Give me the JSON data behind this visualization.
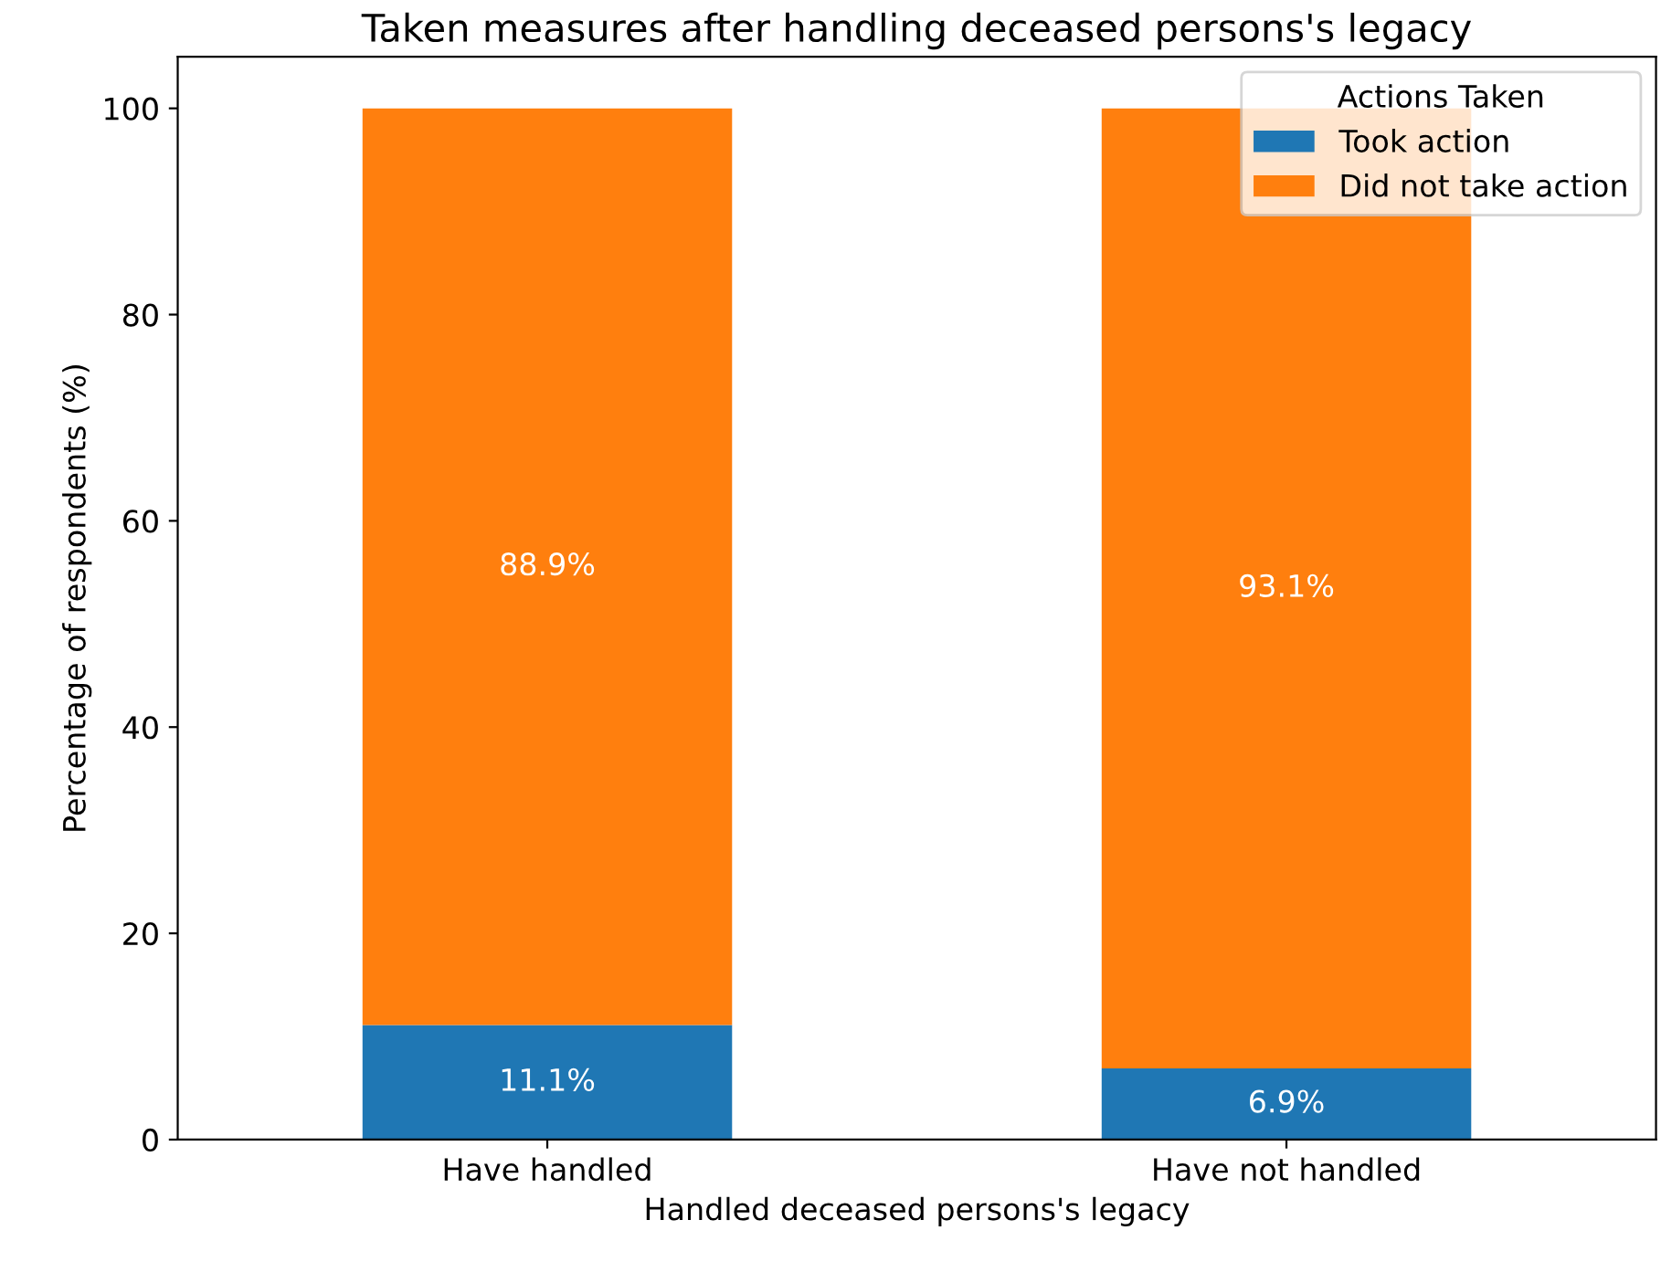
{
  "chart_data": {
    "type": "bar",
    "stacked": true,
    "title": "Taken measures after handling deceased persons's legacy",
    "xlabel": "Handled deceased persons's legacy",
    "ylabel": "Percentage of respondents (%)",
    "legend_title": "Actions Taken",
    "legend": "top right",
    "categories": [
      "Have handled",
      "Have not handled"
    ],
    "series": [
      {
        "name": "Took action",
        "color": "#1f77b4",
        "values": [
          11.1,
          6.9
        ],
        "value_labels": [
          "11.1%",
          "6.9%"
        ]
      },
      {
        "name": "Did not take action",
        "color": "#ff7f0e",
        "values": [
          88.9,
          93.1
        ],
        "value_labels": [
          "88.9%",
          "93.1%"
        ]
      }
    ],
    "ylim": [
      0,
      105
    ],
    "yticks": [
      0,
      20,
      40,
      60,
      80,
      100
    ],
    "grid": false
  }
}
